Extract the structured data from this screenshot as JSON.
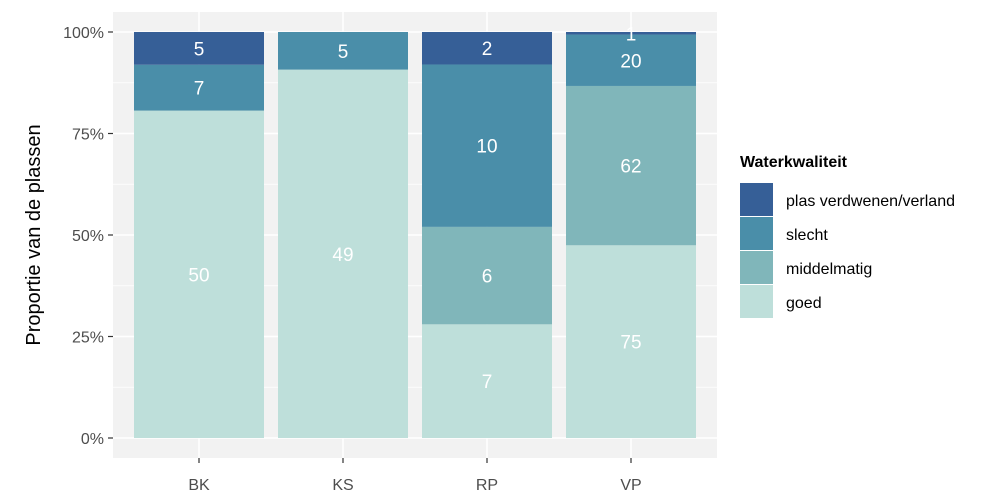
{
  "chart_data": {
    "type": "bar",
    "stacked": "percent",
    "categories": [
      "BK",
      "KS",
      "RP",
      "VP"
    ],
    "ylabel": "Proportie van de plassen",
    "yticks": [
      "0%",
      "25%",
      "50%",
      "75%",
      "100%"
    ],
    "ylim": [
      0,
      1
    ],
    "grid": true,
    "legend": {
      "title": "Waterkwaliteit",
      "position": "right"
    },
    "series": [
      {
        "name": "goed",
        "color": "#bedfda",
        "values": [
          50,
          49,
          7,
          75
        ]
      },
      {
        "name": "middelmatig",
        "color": "#80b6ba",
        "values": [
          0,
          0,
          6,
          62
        ]
      },
      {
        "name": "slecht",
        "color": "#4a8ea9",
        "values": [
          7,
          5,
          10,
          20
        ]
      },
      {
        "name": "plas verdwenen/verland",
        "color": "#365f97",
        "values": [
          5,
          0,
          2,
          1
        ]
      }
    ]
  }
}
